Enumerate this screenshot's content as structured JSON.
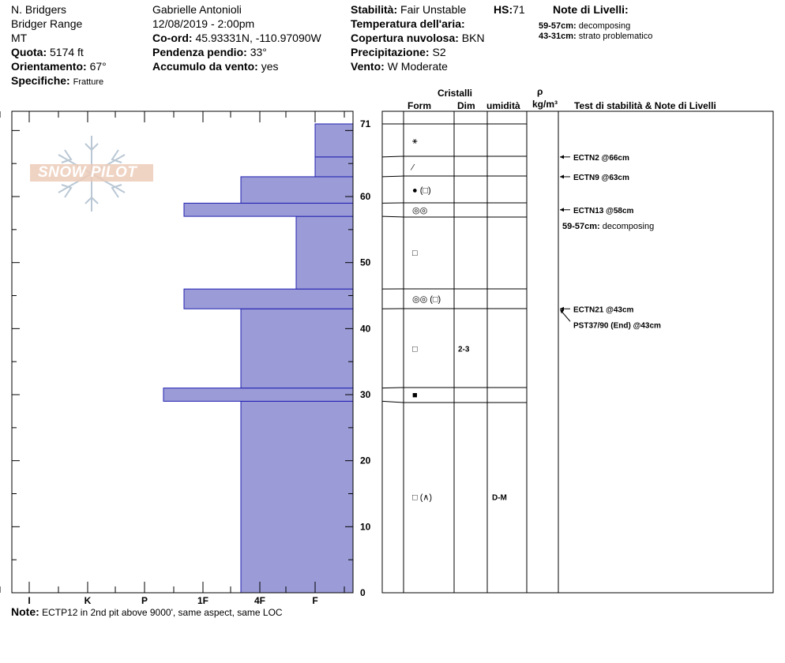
{
  "header": {
    "col1": {
      "observer": "N. Bridgers",
      "range": "Bridger Range",
      "state": "MT",
      "elevation_label": "Quota:",
      "elevation_value": "5174 ft",
      "aspect_label": "Orientamento:",
      "aspect_value": "67°",
      "specifics_label": "Specifiche:",
      "specifics_value": "Fratture"
    },
    "col2": {
      "name": "Gabrielle Antonioli",
      "datetime": "12/08/2019 - 2:00pm",
      "coord_label": "Co-ord:",
      "coord_value": "45.93331N, -110.97090W",
      "slope_label": "Pendenza pendio:",
      "slope_value": "33°",
      "wind_load_label": "Accumulo da vento:",
      "wind_load_value": "yes"
    },
    "col3": {
      "stability_label": "Stabilità:",
      "stability_value": "Fair Unstable",
      "hs_label": "HS:",
      "hs_value": "71",
      "air_temp_label": "Temperatura dell'aria:",
      "air_temp_value": "",
      "cloud_label": "Copertura nuvolosa:",
      "cloud_value": "BKN",
      "precip_label": "Precipitazione:",
      "precip_value": "S2",
      "wind_label": "Vento:",
      "wind_value": "W Moderate"
    },
    "layer_notes": {
      "title": "Note di Livelli:",
      "items": [
        {
          "range": "59-57cm:",
          "text": "decomposing"
        },
        {
          "range": "43-31cm:",
          "text": "strato problematico"
        }
      ]
    }
  },
  "logo": {
    "text": "SNOW PILOT"
  },
  "columns": {
    "crystals": "Cristalli",
    "form": "Form",
    "dim": "Dim",
    "moisture": "umidità",
    "rho": "ρ",
    "density_unit": "kg/m³",
    "stability_notes": "Test di stabilità & Note di Livelli"
  },
  "chart_data": {
    "type": "bar",
    "orientation": "horizontal",
    "x_axis_categories": [
      "I",
      "K",
      "P",
      "1F",
      "4F",
      "F"
    ],
    "y_axis_ticks": [
      "0",
      "10",
      "20",
      "30",
      "40",
      "50",
      "60",
      "71"
    ],
    "ylim": [
      0,
      71
    ],
    "hardness_layers": [
      {
        "bottom": 0,
        "top": 29,
        "hardness": "4F+"
      },
      {
        "bottom": 29,
        "top": 31,
        "hardness": "P-"
      },
      {
        "bottom": 31,
        "top": 43,
        "hardness": "4F+"
      },
      {
        "bottom": 43,
        "top": 46,
        "hardness": "1F+"
      },
      {
        "bottom": 46,
        "top": 57,
        "hardness": "F+"
      },
      {
        "bottom": 57,
        "top": 59,
        "hardness": "1F+"
      },
      {
        "bottom": 59,
        "top": 63,
        "hardness": "4F+"
      },
      {
        "bottom": 63,
        "top": 66,
        "hardness": "F"
      },
      {
        "bottom": 66,
        "top": 71,
        "hardness": "F"
      }
    ]
  },
  "layers_table": [
    {
      "depth": 68.5,
      "form": "⚹",
      "dim": "",
      "moisture": ""
    },
    {
      "depth": 64.5,
      "form": "⁄",
      "dim": "",
      "moisture": ""
    },
    {
      "depth": 61,
      "form": "● (□)",
      "dim": "",
      "moisture": ""
    },
    {
      "depth": 58,
      "form": "◎◎",
      "dim": "",
      "moisture": ""
    },
    {
      "depth": 51.5,
      "form": "□",
      "dim": "",
      "moisture": ""
    },
    {
      "depth": 44.5,
      "form": "◎◎ (□)",
      "dim": "",
      "moisture": ""
    },
    {
      "depth": 37,
      "form": "□",
      "dim": "2-3",
      "moisture": ""
    },
    {
      "depth": 30,
      "form": "■",
      "dim": "",
      "moisture": ""
    },
    {
      "depth": 14.5,
      "form": "□ (∧)",
      "dim": "",
      "moisture": "D-M"
    }
  ],
  "stability_tests": [
    {
      "depth": 66,
      "text": "ECTN2 @66cm"
    },
    {
      "depth": 63,
      "text": "ECTN9 @63cm"
    },
    {
      "depth": 58,
      "text": "ECTN13 @58cm"
    },
    {
      "depth": 43,
      "text": "ECTN21 @43cm"
    },
    {
      "depth": 43,
      "text": "PST37/90 (End) @43cm"
    }
  ],
  "stability_note": {
    "range": "59-57cm:",
    "text": "decomposing"
  },
  "note": {
    "label": "Note:",
    "text": "ECTP12 in 2nd pit above 9000', same aspect, same LOC"
  },
  "colors": {
    "bar_fill": "#9b9bd7",
    "bar_stroke": "#2020b0",
    "logo": "#e8c4b0"
  }
}
